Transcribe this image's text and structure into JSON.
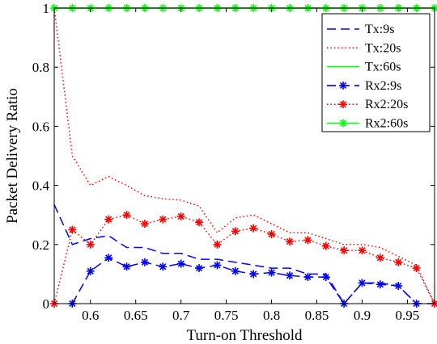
{
  "chart_data": {
    "type": "line",
    "xlabel": "Turn-on Threshold",
    "ylabel": "Packet Delivery Ratio",
    "xlim": [
      0.56,
      0.98
    ],
    "ylim": [
      0,
      1
    ],
    "xticks": [
      0.6,
      0.65,
      0.7,
      0.75,
      0.8,
      0.85,
      0.9,
      0.95
    ],
    "xtick_labels": [
      "0.6",
      "0.65",
      "0.7",
      "0.75",
      "0.8",
      "0.85",
      "0.9",
      "0.95"
    ],
    "yticks": [
      0,
      0.2,
      0.4,
      0.6,
      0.8,
      1
    ],
    "ytick_labels": [
      "0",
      "0.2",
      "0.4",
      "0.6",
      "0.8",
      "1"
    ],
    "grid": false,
    "legend_position": "top-right",
    "x": [
      0.56,
      0.58,
      0.6,
      0.62,
      0.64,
      0.66,
      0.68,
      0.7,
      0.72,
      0.74,
      0.76,
      0.78,
      0.8,
      0.82,
      0.84,
      0.86,
      0.88,
      0.9,
      0.92,
      0.94,
      0.96,
      0.98
    ],
    "series": [
      {
        "name": "Tx:9s",
        "color": "#0000ff",
        "line": "dashed",
        "marker": "none",
        "values": [
          0.335,
          0.2,
          0.22,
          0.23,
          0.19,
          0.19,
          0.17,
          0.17,
          0.15,
          0.15,
          0.14,
          0.13,
          0.12,
          0.12,
          0.1,
          0.1,
          0.0,
          0.07,
          0.07,
          0.06,
          0.0,
          0.0
        ]
      },
      {
        "name": "Tx:20s",
        "color": "#ff0000",
        "line": "dotted",
        "marker": "none",
        "values": [
          1.0,
          0.5,
          0.4,
          0.43,
          0.4,
          0.365,
          0.355,
          0.35,
          0.33,
          0.24,
          0.29,
          0.3,
          0.27,
          0.24,
          0.24,
          0.22,
          0.2,
          0.2,
          0.19,
          0.16,
          0.13,
          0.0
        ]
      },
      {
        "name": "Tx:60s",
        "color": "#00ff00",
        "line": "solid",
        "marker": "none",
        "values": [
          1,
          1,
          1,
          1,
          1,
          1,
          1,
          1,
          1,
          1,
          1,
          1,
          1,
          1,
          1,
          1,
          1,
          1,
          1,
          1,
          1,
          1
        ]
      },
      {
        "name": "Rx2:9s",
        "color": "#0000ff",
        "line": "dashed",
        "marker": "asterisk",
        "values": [
          null,
          0.0,
          0.11,
          0.155,
          0.125,
          0.14,
          0.125,
          0.135,
          0.12,
          0.13,
          0.11,
          0.1,
          0.105,
          0.095,
          0.09,
          0.09,
          0.0,
          0.07,
          0.065,
          0.06,
          0.0,
          null
        ]
      },
      {
        "name": "Rx2:20s",
        "color": "#ff0000",
        "line": "dotted",
        "marker": "asterisk",
        "values": [
          0.0,
          0.25,
          0.2,
          0.285,
          0.3,
          0.27,
          0.285,
          0.295,
          0.275,
          0.2,
          0.245,
          0.255,
          0.235,
          0.21,
          0.215,
          0.195,
          0.18,
          0.18,
          0.155,
          0.14,
          0.12,
          0.0
        ]
      },
      {
        "name": "Rx2:60s",
        "color": "#00ff00",
        "line": "solid",
        "marker": "asterisk",
        "values": [
          1,
          1,
          1,
          1,
          1,
          1,
          1,
          1,
          1,
          1,
          1,
          1,
          1,
          1,
          1,
          1,
          1,
          1,
          1,
          1,
          1,
          1
        ]
      }
    ]
  }
}
